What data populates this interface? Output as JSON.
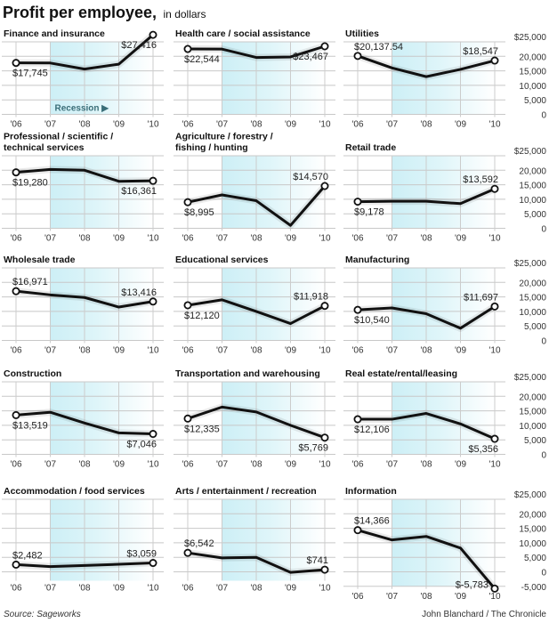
{
  "header": {
    "title": "Profit per employee,",
    "subtitle": "in dollars"
  },
  "recession_label": "Recession ▶",
  "footer": {
    "source": "Source: Sageworks",
    "credit": "John Blanchard / The Chronicle"
  },
  "colors": {
    "line": "#111111",
    "recession_shade": "#cfeff6",
    "grid": "#c8c8c8",
    "recession_text": "#3a6e78"
  },
  "chart_data": [
    {
      "type": "line",
      "title": [
        "Finance and insurance"
      ],
      "x": [
        "'06",
        "'07",
        "'08",
        "'09",
        "'10"
      ],
      "values": [
        17745,
        17700,
        15600,
        17300,
        27416
      ],
      "labels": [
        "$17,745",
        "$27,416"
      ],
      "ylim": [
        0,
        25000
      ]
    },
    {
      "type": "line",
      "title": [
        "Health care / social assistance"
      ],
      "x": [
        "'06",
        "'07",
        "'08",
        "'09",
        "'10"
      ],
      "values": [
        22544,
        22500,
        19600,
        19800,
        23467
      ],
      "labels": [
        "$22,544",
        "$23,467"
      ],
      "ylim": [
        0,
        25000
      ]
    },
    {
      "type": "line",
      "title": [
        "Utilities"
      ],
      "x": [
        "'06",
        "'07",
        "'08",
        "'09",
        "'10"
      ],
      "values": [
        20137.54,
        16000,
        13000,
        15500,
        18547
      ],
      "labels": [
        "$20,137.54",
        "$18,547"
      ],
      "ylim": [
        0,
        25000
      ],
      "y_ticks": [
        "$25,000",
        "20,000",
        "15,000",
        "10,000",
        "5,000",
        "0"
      ]
    },
    {
      "type": "line",
      "title": [
        "Professional / scientific /",
        "technical services"
      ],
      "x": [
        "'06",
        "'07",
        "'08",
        "'09",
        "'10"
      ],
      "values": [
        19280,
        20300,
        20000,
        16200,
        16361
      ],
      "labels": [
        "$19,280",
        "$16,361"
      ],
      "ylim": [
        0,
        25000
      ]
    },
    {
      "type": "line",
      "title": [
        "Agriculture / forestry /",
        "fishing / hunting"
      ],
      "x": [
        "'06",
        "'07",
        "'08",
        "'09",
        "'10"
      ],
      "values": [
        8995,
        11500,
        9500,
        1000,
        14570
      ],
      "labels": [
        "$8,995",
        "$14,570"
      ],
      "ylim": [
        0,
        25000
      ]
    },
    {
      "type": "line",
      "title": [
        "Retail trade"
      ],
      "x": [
        "'06",
        "'07",
        "'08",
        "'09",
        "'10"
      ],
      "values": [
        9178,
        9300,
        9300,
        8500,
        13592
      ],
      "labels": [
        "$9,178",
        "$13,592"
      ],
      "ylim": [
        0,
        25000
      ],
      "y_ticks": [
        "$25,000",
        "20,000",
        "15,000",
        "10,000",
        "5,000",
        "0"
      ]
    },
    {
      "type": "line",
      "title": [
        "Wholesale trade"
      ],
      "x": [
        "'06",
        "'07",
        "'08",
        "'09",
        "'10"
      ],
      "values": [
        16971,
        15700,
        14800,
        11500,
        13416
      ],
      "labels": [
        "$16,971",
        "$13,416"
      ],
      "ylim": [
        0,
        25000
      ]
    },
    {
      "type": "line",
      "title": [
        "Educational services"
      ],
      "x": [
        "'06",
        "'07",
        "'08",
        "'09",
        "'10"
      ],
      "values": [
        12120,
        14000,
        10000,
        5800,
        11918
      ],
      "labels": [
        "$12,120",
        "$11,918"
      ],
      "ylim": [
        0,
        25000
      ]
    },
    {
      "type": "line",
      "title": [
        "Manufacturing"
      ],
      "x": [
        "'06",
        "'07",
        "'08",
        "'09",
        "'10"
      ],
      "values": [
        10540,
        11200,
        9200,
        4200,
        11697
      ],
      "labels": [
        "$10,540",
        "$11,697"
      ],
      "ylim": [
        0,
        25000
      ],
      "y_ticks": [
        "$25,000",
        "20,000",
        "15,000",
        "10,000",
        "5,000",
        "0"
      ]
    },
    {
      "type": "line",
      "title": [
        "Construction"
      ],
      "x": [
        "'06",
        "'07",
        "'08",
        "'09",
        "'10"
      ],
      "values": [
        13519,
        14500,
        10800,
        7400,
        7046
      ],
      "labels": [
        "$13,519",
        "$7,046"
      ],
      "ylim": [
        0,
        25000
      ]
    },
    {
      "type": "line",
      "title": [
        "Transportation and warehousing"
      ],
      "x": [
        "'06",
        "'07",
        "'08",
        "'09",
        "'10"
      ],
      "values": [
        12335,
        16300,
        14600,
        10000,
        5769
      ],
      "labels": [
        "$12,335",
        "$5,769"
      ],
      "ylim": [
        0,
        25000
      ]
    },
    {
      "type": "line",
      "title": [
        "Real estate/rental/leasing"
      ],
      "x": [
        "'06",
        "'07",
        "'08",
        "'09",
        "'10"
      ],
      "values": [
        12106,
        12100,
        14100,
        10500,
        5356
      ],
      "labels": [
        "$12,106",
        "$5,356"
      ],
      "ylim": [
        0,
        25000
      ],
      "y_ticks": [
        "$25,000",
        "20,000",
        "15,000",
        "10,000",
        "5,000",
        "0"
      ]
    },
    {
      "type": "line",
      "title": [
        "Accommodation / food services"
      ],
      "x": [
        "'06",
        "'07",
        "'08",
        "'09",
        "'10"
      ],
      "values": [
        2482,
        1800,
        2200,
        2600,
        3059
      ],
      "labels": [
        "$2,482",
        "$3,059"
      ],
      "ylim": [
        -5000,
        25000
      ]
    },
    {
      "type": "line",
      "title": [
        "Arts / entertainment / recreation"
      ],
      "x": [
        "'06",
        "'07",
        "'08",
        "'09",
        "'10"
      ],
      "values": [
        6542,
        4800,
        5000,
        -200,
        741
      ],
      "labels": [
        "$6,542",
        "$741"
      ],
      "ylim": [
        -5000,
        25000
      ]
    },
    {
      "type": "line",
      "title": [
        "Information"
      ],
      "x": [
        "'06",
        "'07",
        "'08",
        "'09",
        "'10"
      ],
      "values": [
        14366,
        11000,
        12200,
        8200,
        -5783
      ],
      "labels": [
        "$14,366",
        "$-5,783"
      ],
      "ylim": [
        -5000,
        25000
      ],
      "y_ticks": [
        "$25,000",
        "20,000",
        "15,000",
        "10,000",
        "5,000",
        "0",
        "-5,000"
      ]
    }
  ]
}
